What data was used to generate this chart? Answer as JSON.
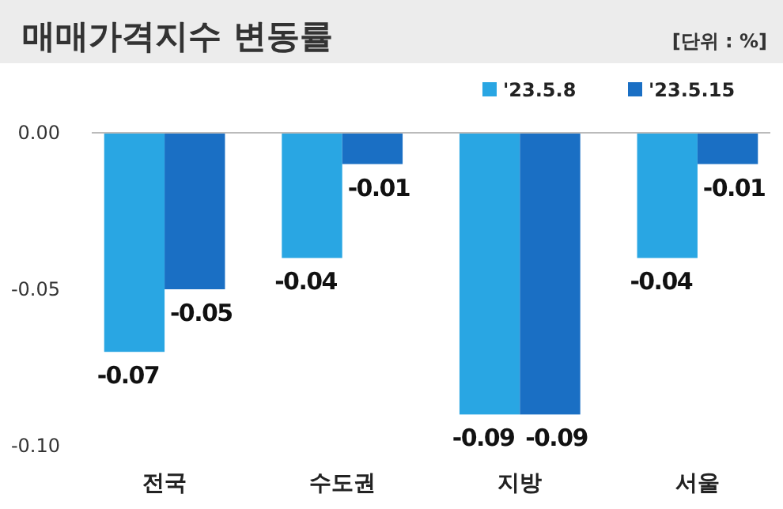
{
  "chart_data": {
    "type": "bar",
    "title": "매매가격지수 변동률",
    "annotations": [
      "[단위 : %]"
    ],
    "categories": [
      "전국",
      "수도권",
      "지방",
      "서울"
    ],
    "series": [
      {
        "name": "'23.5.8",
        "color": "#29a6e3",
        "values": [
          -0.07,
          -0.04,
          -0.09,
          -0.04
        ]
      },
      {
        "name": "'23.5.15",
        "color": "#1a6fc4",
        "values": [
          -0.05,
          -0.01,
          -0.09,
          -0.01
        ]
      }
    ],
    "ylim": [
      -0.1,
      0
    ],
    "yticks": [
      {
        "value": 0,
        "label": "0.00"
      },
      {
        "value": -0.05,
        "label": "-0.05"
      },
      {
        "value": -0.1,
        "label": "-0.10"
      }
    ],
    "grid": false,
    "legend": "top right",
    "data_labels": true
  }
}
